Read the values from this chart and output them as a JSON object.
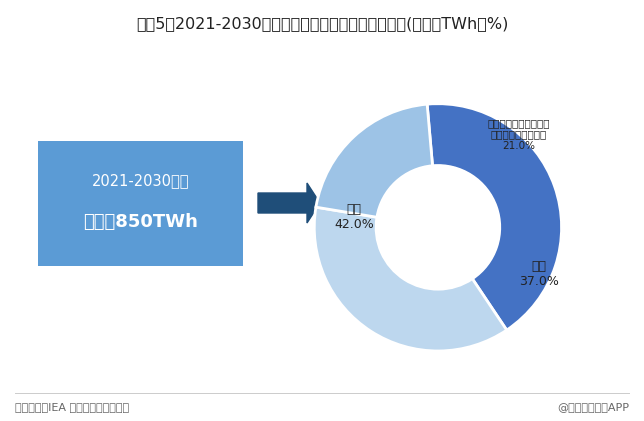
{
  "title": "图表5：2021-2030年全球水电新增发电量及来源分布(单位：TWh，%)",
  "title_fontsize": 11.5,
  "background_color": "#ffffff",
  "box_text_line1": "2021-2030年：",
  "box_text_line2": "新增近850TWh",
  "box_bg_color": "#5b9bd5",
  "box_text_color": "#ffffff",
  "arrow_color": "#1f4e79",
  "pie_values": [
    42.0,
    37.0,
    21.0
  ],
  "pie_colors": [
    "#4472c4",
    "#bdd7ee",
    "#9dc3e6"
  ],
  "pie_startangle": 95,
  "label_china": "中国\n42.0%",
  "label_others": "其他\n37.0%",
  "label_india": "印度、印度尼西亚、巴\n基斯坦、越南和巴西\n21.0%",
  "footer_left": "资料来源：IEA 前瞻产业研究院整理",
  "footer_right": "@前瞻经济学人APP",
  "footer_fontsize": 8,
  "footer_color": "#666666"
}
